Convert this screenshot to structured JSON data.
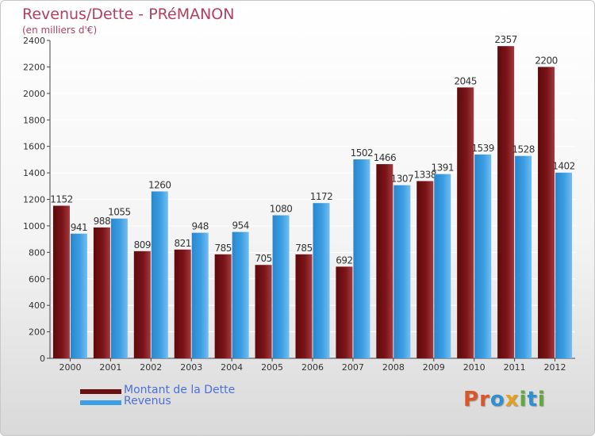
{
  "title": "Revenus/Dette - PRéMANON",
  "subtitle": "(en milliers d'€)",
  "logo": "Proxiti",
  "colors": {
    "dette": "#7a1418",
    "revenus": "#3c9ee3",
    "title": "#b04060",
    "legend_text": "#4d6fd8",
    "logo": [
      "#d9562b",
      "#d9562b",
      "#2f8fcf",
      "#e2a11f",
      "#62a83a",
      "#2f8fcf",
      "#62a83a"
    ]
  },
  "legend": [
    {
      "label": "Montant de la Dette",
      "color": "#6b0f12"
    },
    {
      "label": "Revenus",
      "color": "#3c9ee3"
    }
  ],
  "chart_data": {
    "type": "bar",
    "title": "Revenus/Dette - PRéMANON",
    "subtitle": "(en milliers d'€)",
    "categories": [
      "2000",
      "2001",
      "2002",
      "2003",
      "2004",
      "2005",
      "2006",
      "2007",
      "2008",
      "2009",
      "2010",
      "2011",
      "2012"
    ],
    "series": [
      {
        "name": "Montant de la Dette",
        "values": [
          1152,
          988,
          809,
          821,
          785,
          705,
          785,
          692,
          1466,
          1338,
          2045,
          2357,
          2200
        ]
      },
      {
        "name": "Revenus",
        "values": [
          941,
          1055,
          1260,
          948,
          954,
          1080,
          1172,
          1502,
          1307,
          1391,
          1539,
          1528,
          1402
        ]
      }
    ],
    "ylim": [
      0,
      2400
    ],
    "yticks": [
      0,
      200,
      400,
      600,
      800,
      1000,
      1200,
      1400,
      1600,
      1800,
      2000,
      2200,
      2400
    ],
    "grid": true,
    "legend_position": "bottom-left"
  }
}
